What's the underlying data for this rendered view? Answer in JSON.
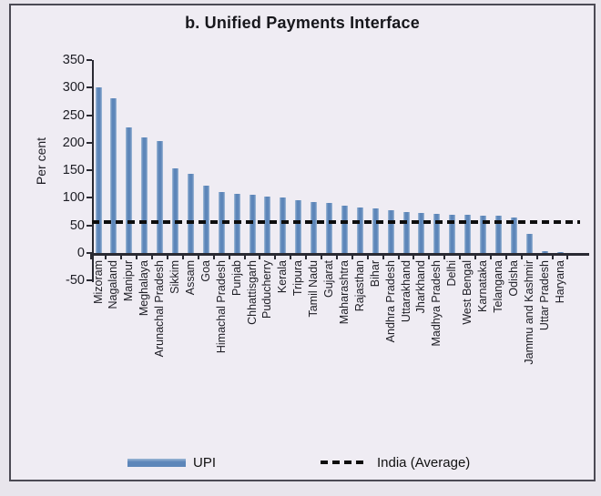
{
  "figure": {
    "title": "b. Unified Payments Interface"
  },
  "legend": {
    "upi_label": "UPI",
    "average_label": "India (Average)"
  },
  "colors": {
    "bar": "#5d86b9",
    "bar_edge": "#a3bcd8",
    "average_line": "#0d0d0d",
    "panel_background": "#efecf3",
    "outer_background": "#e8e5ec",
    "border": "#4b4a54",
    "text": "#1d1d24"
  },
  "chart_data": {
    "type": "bar",
    "title": "b. Unified Payments Interface",
    "xlabel": "",
    "ylabel": "Per cent",
    "ylim": [
      -50,
      350
    ],
    "yticks": [
      350,
      300,
      250,
      200,
      150,
      100,
      50,
      0,
      -50
    ],
    "grid": false,
    "legend_position": "bottom",
    "categories": [
      "Mizoram",
      "Nagaland",
      "Manipur",
      "Meghalaya",
      "Arunachal Pradesh",
      "Sikkim",
      "Assam",
      "Goa",
      "Himachal Pradesh",
      "Punjab",
      "Chhattisgarh",
      "Puducherry",
      "Kerala",
      "Tripura",
      "Tamil Nadu",
      "Gujarat",
      "Maharashtra",
      "Rajasthan",
      "Bihar",
      "Andhra Pradesh",
      "Uttarakhand",
      "Jharkhand",
      "Madhya Pradesh",
      "Delhi",
      "West Bengal",
      "Karnataka",
      "Telangana",
      "Odisha",
      "Jammu and Kashmir",
      "Uttar Pradesh",
      "Haryana"
    ],
    "series": [
      {
        "name": "UPI",
        "values": [
          300,
          281,
          228,
          210,
          203,
          153,
          143,
          122,
          110,
          107,
          105,
          103,
          100,
          96,
          93,
          90,
          86,
          83,
          81,
          77,
          75,
          73,
          71,
          70,
          69,
          67,
          68,
          65,
          34,
          3,
          2
        ]
      }
    ],
    "average_line": {
      "label": "India (Average)",
      "value": 56
    }
  }
}
